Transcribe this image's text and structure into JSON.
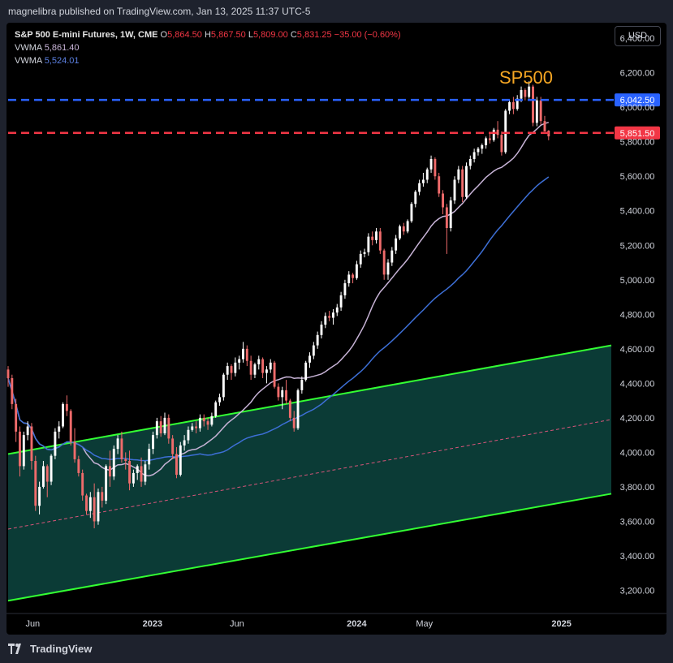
{
  "header": {
    "published": "magnelibra published on TradingView.com, Jan 13, 2025 11:37 UTC-5"
  },
  "legend": {
    "symbol": "S&P 500 E-mini Futures, 1W, CME",
    "o_label": "O",
    "o_value": "5,864.50",
    "h_label": "H",
    "h_value": "5,867.50",
    "l_label": "L",
    "l_value": "5,809.00",
    "c_label": "C",
    "c_value": "5,831.25",
    "change": "−35.00 (−0.60%)",
    "vwma1_label": "VWMA",
    "vwma1_value": "5,861.40",
    "vwma2_label": "VWMA",
    "vwma2_value": "5,524.01"
  },
  "currency_button": "USD",
  "annotation": {
    "text": "SP500",
    "color": "#f5a623"
  },
  "footer": {
    "brand": "TradingView"
  },
  "colors": {
    "up": "#ffffff",
    "down": "#ef6b6b",
    "vwma_fast": "#c7b3d6",
    "vwma_slow": "#3d6fd6",
    "channel_line": "#33ff33",
    "channel_fill": "#0b3b36",
    "midline": "#d8557a",
    "resistance": "#2962ff",
    "support": "#f23645"
  },
  "chart_data": {
    "type": "candlestick",
    "title": "S&P 500 E-mini Futures, 1W, CME",
    "ylim": [
      3080,
      6490
    ],
    "y_ticks": [
      "3,200.00",
      "3,400.00",
      "3,600.00",
      "3,800.00",
      "4,000.00",
      "4,200.00",
      "4,400.00",
      "4,600.00",
      "4,800.00",
      "5,000.00",
      "5,200.00",
      "5,400.00",
      "5,600.00",
      "5,800.00",
      "6,000.00",
      "6,200.00",
      "6,400.00"
    ],
    "y_tick_values": [
      3200,
      3400,
      3600,
      3800,
      4000,
      4200,
      4400,
      4600,
      4800,
      5000,
      5200,
      5400,
      5600,
      5800,
      6000,
      6200,
      6400
    ],
    "x_range": [
      "2022-04-18",
      "2025-03-31"
    ],
    "x_ticks": [
      {
        "label": "Jun",
        "date": "2022-06-01"
      },
      {
        "label": "2023",
        "date": "2023-01-01"
      },
      {
        "label": "Jun",
        "date": "2023-06-01"
      },
      {
        "label": "2024",
        "date": "2024-01-01"
      },
      {
        "label": "May",
        "date": "2024-05-01"
      },
      {
        "label": "2025",
        "date": "2025-01-01"
      }
    ],
    "horizontal_lines": [
      {
        "value": 6042.5,
        "label": "6,042.50",
        "color": "#2962ff",
        "style": "dashed"
      },
      {
        "value": 5851.5,
        "label": "5,851.50",
        "color": "#f23645",
        "style": "dashed"
      }
    ],
    "channel": {
      "upper": [
        {
          "date": "2022-04-18",
          "value": 3990
        },
        {
          "date": "2025-03-31",
          "value": 4620
        }
      ],
      "middle": [
        {
          "date": "2022-04-18",
          "value": 3555
        },
        {
          "date": "2025-03-31",
          "value": 4190
        }
      ],
      "lower": [
        {
          "date": "2022-04-18",
          "value": 3140
        },
        {
          "date": "2025-03-31",
          "value": 3760
        }
      ]
    },
    "candle_start": "2022-04-18",
    "candle_interval_days": 7,
    "candles": [
      [
        4480,
        4500,
        4380,
        4430
      ],
      [
        4430,
        4450,
        4250,
        4280
      ],
      [
        4280,
        4310,
        4060,
        4120
      ],
      [
        4120,
        4150,
        3860,
        3920
      ],
      [
        3920,
        4120,
        3900,
        4100
      ],
      [
        4100,
        4180,
        4070,
        4150
      ],
      [
        4150,
        4170,
        3900,
        3950
      ],
      [
        3950,
        3980,
        3660,
        3690
      ],
      [
        3690,
        3830,
        3640,
        3800
      ],
      [
        3800,
        3950,
        3790,
        3920
      ],
      [
        3920,
        3930,
        3740,
        3830
      ],
      [
        3830,
        3990,
        3810,
        3980
      ],
      [
        3980,
        4140,
        3960,
        4120
      ],
      [
        4120,
        4180,
        4080,
        4150
      ],
      [
        4150,
        4290,
        4140,
        4280
      ],
      [
        4280,
        4330,
        4210,
        4240
      ],
      [
        4240,
        4250,
        4040,
        4060
      ],
      [
        4060,
        4140,
        3940,
        3960
      ],
      [
        3960,
        3980,
        3860,
        3880
      ],
      [
        3880,
        3900,
        3720,
        3750
      ],
      [
        3750,
        3760,
        3640,
        3660
      ],
      [
        3660,
        3770,
        3620,
        3740
      ],
      [
        3740,
        3820,
        3560,
        3600
      ],
      [
        3600,
        3790,
        3580,
        3770
      ],
      [
        3770,
        3800,
        3680,
        3720
      ],
      [
        3720,
        3930,
        3700,
        3920
      ],
      [
        3920,
        4010,
        3800,
        3860
      ],
      [
        3860,
        4040,
        3840,
        4020
      ],
      [
        4020,
        4100,
        3990,
        4080
      ],
      [
        4080,
        4120,
        3940,
        3960
      ],
      [
        3960,
        4000,
        3900,
        3950
      ],
      [
        3950,
        4010,
        3780,
        3820
      ],
      [
        3820,
        3900,
        3800,
        3880
      ],
      [
        3880,
        3930,
        3840,
        3920
      ],
      [
        3920,
        3970,
        3800,
        3830
      ],
      [
        3830,
        3950,
        3810,
        3930
      ],
      [
        3930,
        4050,
        3900,
        4020
      ],
      [
        4020,
        4120,
        3990,
        4100
      ],
      [
        4100,
        4200,
        4080,
        4180
      ],
      [
        4180,
        4210,
        4090,
        4110
      ],
      [
        4110,
        4230,
        4100,
        4200
      ],
      [
        4200,
        4220,
        4050,
        4080
      ],
      [
        4080,
        4100,
        3960,
        3990
      ],
      [
        3990,
        4030,
        3850,
        3870
      ],
      [
        3870,
        4060,
        3860,
        4040
      ],
      [
        4040,
        4100,
        4010,
        4070
      ],
      [
        4070,
        4150,
        4050,
        4130
      ],
      [
        4130,
        4170,
        4120,
        4150
      ],
      [
        4150,
        4180,
        4110,
        4140
      ],
      [
        4140,
        4220,
        4120,
        4200
      ],
      [
        4200,
        4220,
        4150,
        4180
      ],
      [
        4180,
        4200,
        4130,
        4160
      ],
      [
        4160,
        4230,
        4150,
        4210
      ],
      [
        4210,
        4300,
        4200,
        4290
      ],
      [
        4290,
        4340,
        4270,
        4320
      ],
      [
        4320,
        4460,
        4300,
        4450
      ],
      [
        4450,
        4520,
        4420,
        4500
      ],
      [
        4500,
        4510,
        4420,
        4460
      ],
      [
        4460,
        4550,
        4440,
        4520
      ],
      [
        4520,
        4560,
        4480,
        4540
      ],
      [
        4540,
        4640,
        4520,
        4600
      ],
      [
        4600,
        4620,
        4500,
        4530
      ],
      [
        4530,
        4560,
        4420,
        4450
      ],
      [
        4450,
        4520,
        4430,
        4510
      ],
      [
        4510,
        4560,
        4480,
        4540
      ],
      [
        4540,
        4550,
        4430,
        4460
      ],
      [
        4460,
        4500,
        4400,
        4480
      ],
      [
        4480,
        4540,
        4460,
        4520
      ],
      [
        4520,
        4530,
        4370,
        4380
      ],
      [
        4380,
        4400,
        4300,
        4320
      ],
      [
        4320,
        4380,
        4250,
        4360
      ],
      [
        4360,
        4420,
        4280,
        4300
      ],
      [
        4300,
        4310,
        4180,
        4200
      ],
      [
        4200,
        4240,
        4120,
        4140
      ],
      [
        4140,
        4370,
        4130,
        4360
      ],
      [
        4360,
        4440,
        4340,
        4420
      ],
      [
        4420,
        4530,
        4410,
        4520
      ],
      [
        4520,
        4580,
        4490,
        4560
      ],
      [
        4560,
        4640,
        4540,
        4620
      ],
      [
        4620,
        4700,
        4600,
        4680
      ],
      [
        4680,
        4760,
        4660,
        4740
      ],
      [
        4740,
        4810,
        4720,
        4790
      ],
      [
        4790,
        4820,
        4760,
        4780
      ],
      [
        4780,
        4830,
        4740,
        4810
      ],
      [
        4810,
        4860,
        4790,
        4840
      ],
      [
        4840,
        4930,
        4820,
        4910
      ],
      [
        4910,
        5000,
        4890,
        4980
      ],
      [
        4980,
        5050,
        4960,
        5030
      ],
      [
        5030,
        5040,
        4980,
        5010
      ],
      [
        5010,
        5110,
        5000,
        5090
      ],
      [
        5090,
        5170,
        5070,
        5150
      ],
      [
        5150,
        5180,
        5130,
        5160
      ],
      [
        5160,
        5270,
        5140,
        5250
      ],
      [
        5250,
        5280,
        5200,
        5230
      ],
      [
        5230,
        5300,
        5210,
        5280
      ],
      [
        5280,
        5300,
        5150,
        5170
      ],
      [
        5170,
        5180,
        5000,
        5030
      ],
      [
        5030,
        5120,
        5000,
        5100
      ],
      [
        5100,
        5190,
        5080,
        5170
      ],
      [
        5170,
        5260,
        5150,
        5240
      ],
      [
        5240,
        5320,
        5230,
        5310
      ],
      [
        5310,
        5330,
        5260,
        5280
      ],
      [
        5280,
        5350,
        5270,
        5340
      ],
      [
        5340,
        5450,
        5330,
        5440
      ],
      [
        5440,
        5520,
        5420,
        5510
      ],
      [
        5510,
        5580,
        5490,
        5560
      ],
      [
        5560,
        5620,
        5540,
        5580
      ],
      [
        5580,
        5650,
        5560,
        5640
      ],
      [
        5640,
        5720,
        5620,
        5700
      ],
      [
        5700,
        5710,
        5580,
        5600
      ],
      [
        5600,
        5620,
        5480,
        5500
      ],
      [
        5500,
        5520,
        5380,
        5420
      ],
      [
        5420,
        5440,
        5150,
        5300
      ],
      [
        5300,
        5480,
        5280,
        5460
      ],
      [
        5460,
        5600,
        5440,
        5580
      ],
      [
        5580,
        5660,
        5560,
        5640
      ],
      [
        5640,
        5660,
        5450,
        5480
      ],
      [
        5480,
        5680,
        5470,
        5660
      ],
      [
        5660,
        5720,
        5640,
        5700
      ],
      [
        5700,
        5760,
        5680,
        5740
      ],
      [
        5740,
        5770,
        5720,
        5760
      ],
      [
        5760,
        5790,
        5730,
        5780
      ],
      [
        5780,
        5830,
        5760,
        5820
      ],
      [
        5820,
        5850,
        5790,
        5810
      ],
      [
        5810,
        5880,
        5800,
        5870
      ],
      [
        5870,
        5920,
        5820,
        5840
      ],
      [
        5840,
        5860,
        5720,
        5740
      ],
      [
        5740,
        5990,
        5730,
        5980
      ],
      [
        5980,
        6040,
        5960,
        6030
      ],
      [
        6030,
        6060,
        5960,
        5990
      ],
      [
        5990,
        6070,
        5980,
        6050
      ],
      [
        6050,
        6120,
        6030,
        6100
      ],
      [
        6100,
        6110,
        6040,
        6060
      ],
      [
        6060,
        6150,
        6050,
        6120
      ],
      [
        6120,
        6130,
        5890,
        5910
      ],
      [
        5910,
        6060,
        5890,
        6040
      ],
      [
        6040,
        6060,
        5900,
        5920
      ],
      [
        5920,
        5950,
        5860,
        5860
      ],
      [
        5864.5,
        5867.5,
        5809,
        5831.25
      ]
    ]
  }
}
